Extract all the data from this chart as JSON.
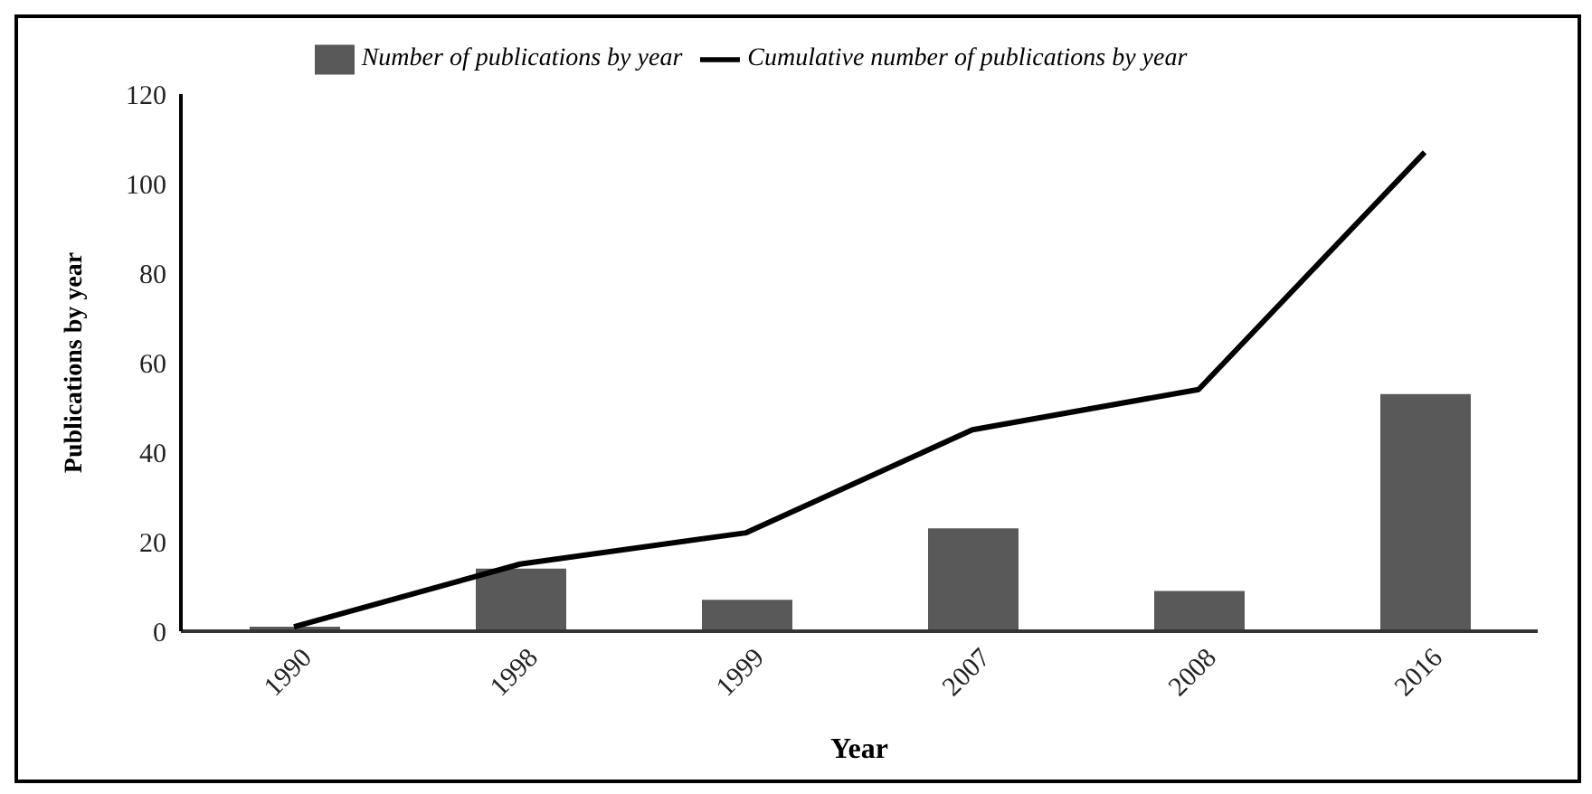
{
  "chart_data": {
    "type": "bar",
    "xlabel": "Year",
    "ylabel": "Publications by year",
    "categories": [
      "1990",
      "1998",
      "1999",
      "2007",
      "2008",
      "2016"
    ],
    "series": [
      {
        "name": "Number of publications  by year",
        "color": "#595959",
        "values": [
          1,
          14,
          7,
          23,
          9,
          53
        ]
      },
      {
        "name": "Cumulative  number of publications  by year",
        "type": "line",
        "color": "#000000",
        "values": [
          1,
          15,
          22,
          45,
          54,
          107
        ]
      }
    ],
    "ylim": [
      0,
      120
    ],
    "yticks": [
      0,
      20,
      40,
      60,
      80,
      100,
      120
    ],
    "grid": false,
    "legend": "top",
    "marker": "none",
    "line_style": "solid"
  }
}
